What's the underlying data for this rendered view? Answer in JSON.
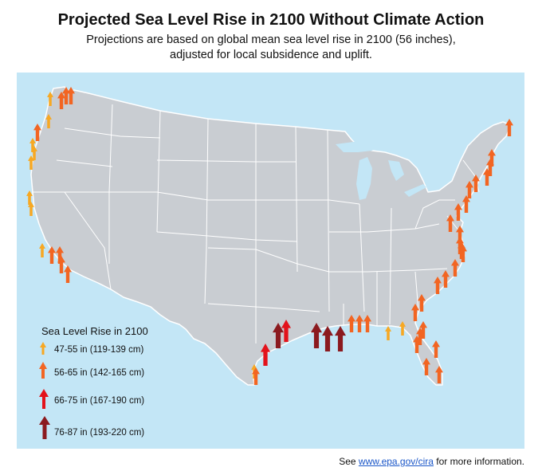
{
  "title": "Projected Sea Level Rise in 2100 Without Climate Action",
  "subtitle_line1": "Projections are based on global mean sea level rise in 2100 (56 inches),",
  "subtitle_line2": "adjusted for local subsidence and uplift.",
  "legend": {
    "title": "Sea Level Rise in 2100",
    "items": [
      {
        "label": "47-55 in (119-139 cm)",
        "color": "#f7a823",
        "size": 1
      },
      {
        "label": "56-65 in (142-165 cm)",
        "color": "#f26522",
        "size": 2
      },
      {
        "label": "66-75 in (167-190 cm)",
        "color": "#e3121b",
        "size": 3
      },
      {
        "label": "76-87 in (193-220 cm)",
        "color": "#8b1a1f",
        "size": 4
      }
    ]
  },
  "footer": {
    "prefix": "See ",
    "link": "www.epa.gov/cira",
    "suffix": " for more information."
  },
  "colors": {
    "water": "#c3e6f6",
    "land": "#c9cdd2",
    "border": "#ffffff"
  }
}
